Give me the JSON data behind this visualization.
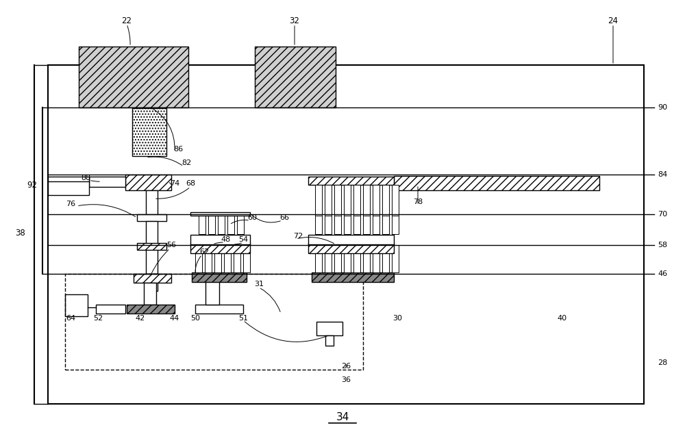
{
  "bg_color": "#ffffff",
  "fig_width": 10.0,
  "fig_height": 6.53
}
